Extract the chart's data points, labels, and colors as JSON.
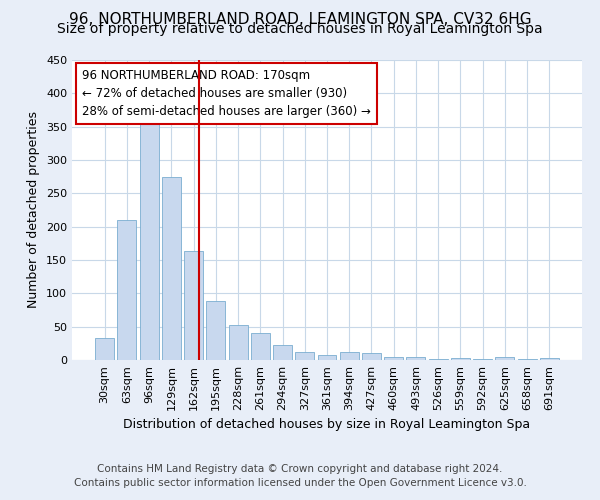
{
  "title": "96, NORTHUMBERLAND ROAD, LEAMINGTON SPA, CV32 6HG",
  "subtitle": "Size of property relative to detached houses in Royal Leamington Spa",
  "xlabel": "Distribution of detached houses by size in Royal Leamington Spa",
  "ylabel": "Number of detached properties",
  "footnote1": "Contains HM Land Registry data © Crown copyright and database right 2024.",
  "footnote2": "Contains public sector information licensed under the Open Government Licence v3.0.",
  "categories": [
    "30sqm",
    "63sqm",
    "96sqm",
    "129sqm",
    "162sqm",
    "195sqm",
    "228sqm",
    "261sqm",
    "294sqm",
    "327sqm",
    "361sqm",
    "394sqm",
    "427sqm",
    "460sqm",
    "493sqm",
    "526sqm",
    "559sqm",
    "592sqm",
    "625sqm",
    "658sqm",
    "691sqm"
  ],
  "values": [
    33,
    210,
    375,
    275,
    163,
    88,
    52,
    40,
    22,
    12,
    7,
    12,
    10,
    5,
    4,
    2,
    3,
    1,
    4,
    1,
    3
  ],
  "bar_color": "#c8d8ee",
  "bar_edgecolor": "#7aaed0",
  "vline_color": "#cc0000",
  "annotation_text": "96 NORTHUMBERLAND ROAD: 170sqm\n← 72% of detached houses are smaller (930)\n28% of semi-detached houses are larger (360) →",
  "annotation_box_color": "#cc0000",
  "ylim": [
    0,
    450
  ],
  "fig_background_color": "#e8eef8",
  "plot_background_color": "#ffffff",
  "grid_color": "#c8d8e8",
  "title_fontsize": 11,
  "subtitle_fontsize": 10,
  "axis_label_fontsize": 9,
  "tick_fontsize": 8,
  "annotation_fontsize": 8.5,
  "footnote_fontsize": 7.5
}
